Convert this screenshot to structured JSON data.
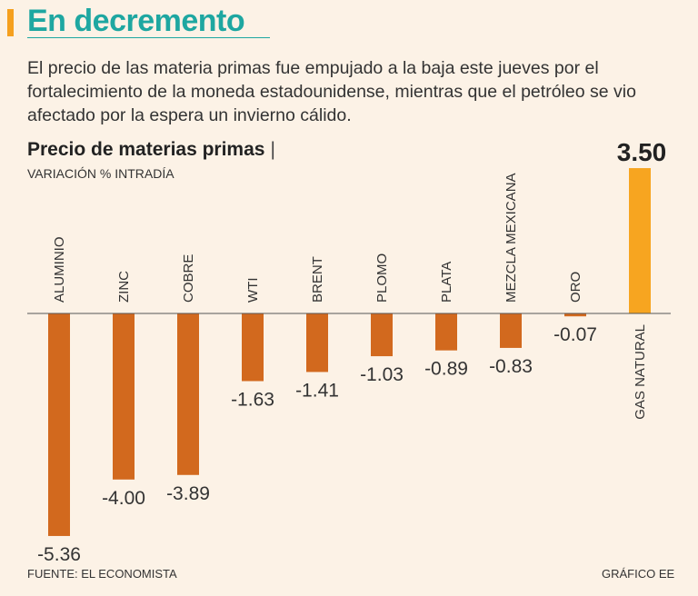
{
  "header": {
    "title": "En decremento"
  },
  "intro": {
    "text": "El precio de las materia primas fue empujado a la baja este jueves por el fortalecimiento de la moneda estadounidense, mientras que el petróleo se vio afectado por la espera un invierno cálido."
  },
  "footer": {
    "source": "FUENTE: EL ECONOMISTA",
    "credit": "GRÁFICO EE"
  },
  "colors": {
    "negative": "#d2691e",
    "positive": "#f7a520",
    "accent": "#1ea7a1",
    "background": "#fcf2e6"
  },
  "chart_data": {
    "type": "bar",
    "title": "Precio de materias primas",
    "title_separator": "|",
    "subtitle": "VARIACIÓN % INTRADÍA",
    "categories": [
      "ALUMINIO",
      "ZINC",
      "COBRE",
      "WTI",
      "BRENT",
      "PLOMO",
      "PLATA",
      "MEZCLA MEXICANA",
      "ORO",
      "GAS NATURAL"
    ],
    "values": [
      -5.36,
      -4.0,
      -3.89,
      -1.63,
      -1.41,
      -1.03,
      -0.89,
      -0.83,
      -0.07,
      3.5
    ],
    "value_labels": [
      "-5.36",
      "-4.00",
      "-3.89",
      "-1.63",
      "-1.41",
      "-1.03",
      "-0.89",
      "-0.83",
      "-0.07",
      "3.50"
    ],
    "xlabel": "",
    "ylabel": "Variación % intradía",
    "ylim": [
      -5.36,
      3.5
    ],
    "grid": false,
    "legend": "none"
  }
}
